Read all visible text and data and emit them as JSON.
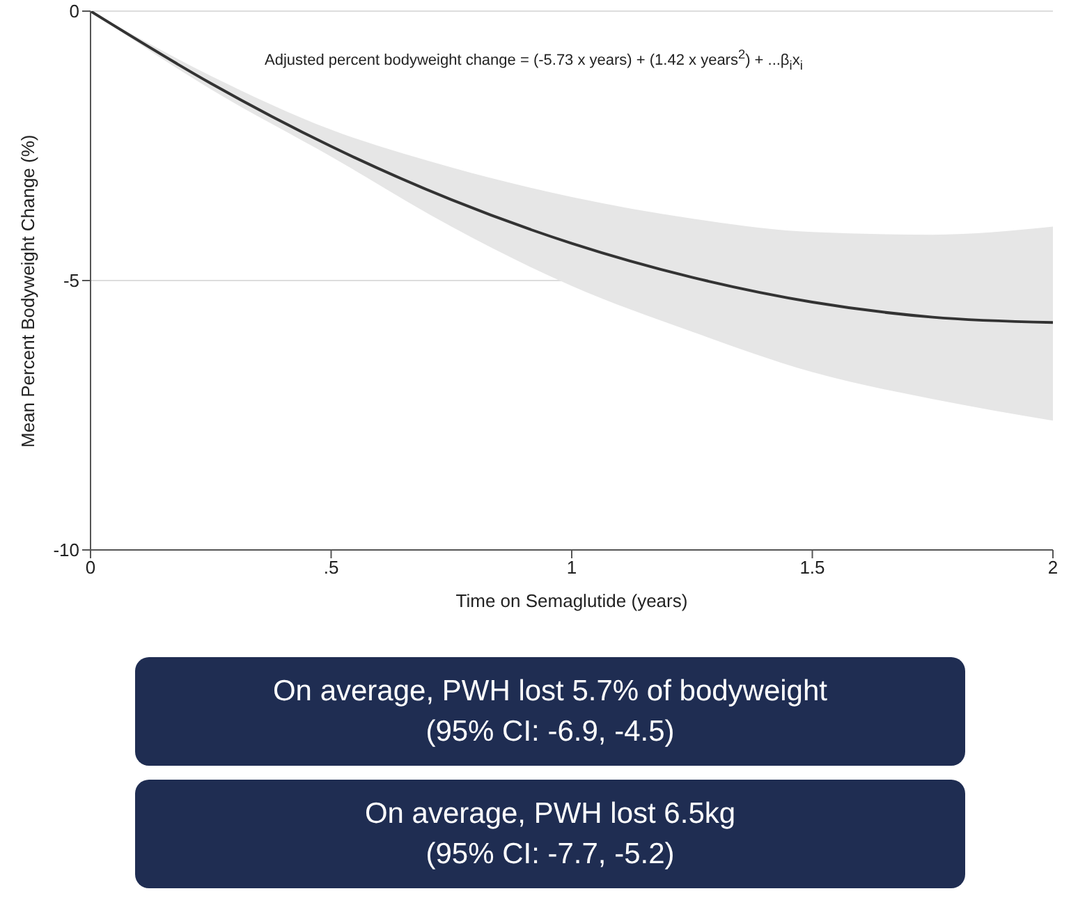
{
  "chart_data": {
    "type": "line",
    "xlabel": "Time on Semaglutide (years)",
    "ylabel": "Mean Percent Bodyweight Change (%)",
    "x": [
      0,
      0.25,
      0.5,
      0.75,
      1,
      1.25,
      1.5,
      1.75,
      2
    ],
    "series": [
      {
        "color": "#333333",
        "values": [
          0,
          -1.34,
          -2.51,
          -3.5,
          -4.31,
          -4.94,
          -5.4,
          -5.68,
          -5.78
        ],
        "lower": [
          0,
          -1.45,
          -2.7,
          -4.0,
          -5.1,
          -5.95,
          -6.7,
          -7.2,
          -7.6
        ],
        "upper": [
          0,
          -1.2,
          -2.2,
          -2.9,
          -3.45,
          -3.85,
          -4.1,
          -4.15,
          -4.0
        ]
      }
    ],
    "xlim": [
      0,
      2
    ],
    "xticks": [
      0,
      {
        "value": 0.5,
        "label": ".5"
      },
      1,
      1.5,
      2
    ],
    "ylim": [
      -10,
      0
    ],
    "yticks": [
      -10,
      -5,
      0
    ],
    "grid": "y",
    "marker": "none",
    "line_style": "solid",
    "annotations": [
      "Adjusted percent bodyweight change = (-5.73 x years) + (1.42 x years$^{2}$) + ...β$_{i}$x$_{i}$",
      "On average, PWH lost 5.7% of bodyweight\n(95% CI: -6.9, -4.5)",
      "On average, PWH lost 6.5kg\n(95% CI: -7.7, -5.2)"
    ]
  }
}
